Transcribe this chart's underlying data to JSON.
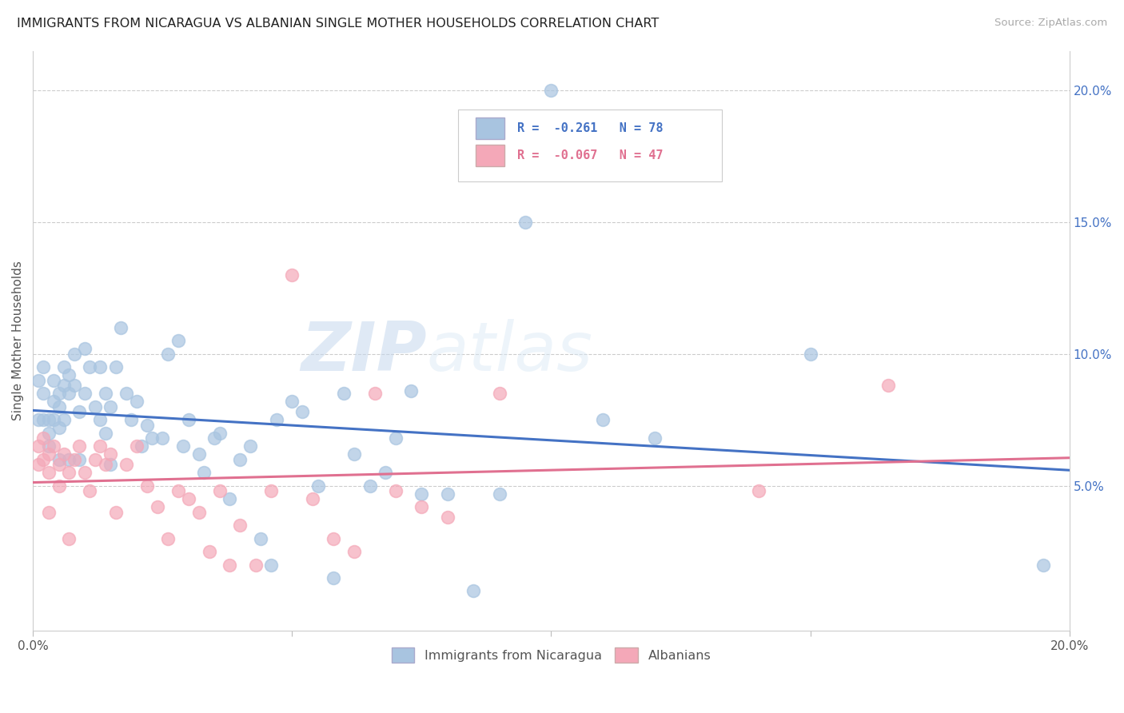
{
  "title": "IMMIGRANTS FROM NICARAGUA VS ALBANIAN SINGLE MOTHER HOUSEHOLDS CORRELATION CHART",
  "source": "Source: ZipAtlas.com",
  "ylabel": "Single Mother Households",
  "background_color": "#ffffff",
  "watermark_zip": "ZIP",
  "watermark_atlas": "atlas",
  "series1_label": "Immigrants from Nicaragua",
  "series2_label": "Albanians",
  "series1_color": "#a8c4e0",
  "series2_color": "#f4a8b8",
  "series1_line_color": "#4472c4",
  "series2_line_color": "#e07090",
  "legend_r1": "R =  -0.261",
  "legend_n1": "N = 78",
  "legend_r2": "R =  -0.067",
  "legend_n2": "N = 47",
  "right_axis_color": "#4472c4",
  "xlim": [
    0.0,
    0.2
  ],
  "ylim": [
    -0.005,
    0.215
  ],
  "right_yticks": [
    0.0,
    0.05,
    0.1,
    0.15,
    0.2
  ],
  "right_yticklabels": [
    "",
    "5.0%",
    "10.0%",
    "15.0%",
    "20.0%"
  ],
  "series1_x": [
    0.001,
    0.001,
    0.002,
    0.002,
    0.002,
    0.003,
    0.003,
    0.003,
    0.004,
    0.004,
    0.004,
    0.005,
    0.005,
    0.005,
    0.005,
    0.006,
    0.006,
    0.006,
    0.007,
    0.007,
    0.007,
    0.008,
    0.008,
    0.009,
    0.009,
    0.01,
    0.01,
    0.011,
    0.012,
    0.013,
    0.013,
    0.014,
    0.014,
    0.015,
    0.015,
    0.016,
    0.017,
    0.018,
    0.019,
    0.02,
    0.021,
    0.022,
    0.023,
    0.025,
    0.026,
    0.028,
    0.029,
    0.03,
    0.032,
    0.033,
    0.035,
    0.036,
    0.038,
    0.04,
    0.042,
    0.044,
    0.046,
    0.047,
    0.05,
    0.052,
    0.055,
    0.058,
    0.06,
    0.062,
    0.065,
    0.068,
    0.07,
    0.073,
    0.075,
    0.08,
    0.085,
    0.09,
    0.095,
    0.1,
    0.11,
    0.12,
    0.15,
    0.195
  ],
  "series1_y": [
    0.09,
    0.075,
    0.095,
    0.085,
    0.075,
    0.075,
    0.07,
    0.065,
    0.09,
    0.082,
    0.075,
    0.085,
    0.08,
    0.072,
    0.06,
    0.095,
    0.088,
    0.075,
    0.092,
    0.085,
    0.06,
    0.1,
    0.088,
    0.078,
    0.06,
    0.102,
    0.085,
    0.095,
    0.08,
    0.095,
    0.075,
    0.085,
    0.07,
    0.08,
    0.058,
    0.095,
    0.11,
    0.085,
    0.075,
    0.082,
    0.065,
    0.073,
    0.068,
    0.068,
    0.1,
    0.105,
    0.065,
    0.075,
    0.062,
    0.055,
    0.068,
    0.07,
    0.045,
    0.06,
    0.065,
    0.03,
    0.02,
    0.075,
    0.082,
    0.078,
    0.05,
    0.015,
    0.085,
    0.062,
    0.05,
    0.055,
    0.068,
    0.086,
    0.047,
    0.047,
    0.01,
    0.047,
    0.15,
    0.2,
    0.075,
    0.068,
    0.1,
    0.02
  ],
  "series2_x": [
    0.001,
    0.001,
    0.002,
    0.002,
    0.003,
    0.003,
    0.003,
    0.004,
    0.005,
    0.005,
    0.006,
    0.007,
    0.007,
    0.008,
    0.009,
    0.01,
    0.011,
    0.012,
    0.013,
    0.014,
    0.015,
    0.016,
    0.018,
    0.02,
    0.022,
    0.024,
    0.026,
    0.028,
    0.03,
    0.032,
    0.034,
    0.036,
    0.038,
    0.04,
    0.043,
    0.046,
    0.05,
    0.054,
    0.058,
    0.062,
    0.066,
    0.07,
    0.075,
    0.08,
    0.09,
    0.14,
    0.165
  ],
  "series2_y": [
    0.065,
    0.058,
    0.068,
    0.06,
    0.062,
    0.055,
    0.04,
    0.065,
    0.058,
    0.05,
    0.062,
    0.055,
    0.03,
    0.06,
    0.065,
    0.055,
    0.048,
    0.06,
    0.065,
    0.058,
    0.062,
    0.04,
    0.058,
    0.065,
    0.05,
    0.042,
    0.03,
    0.048,
    0.045,
    0.04,
    0.025,
    0.048,
    0.02,
    0.035,
    0.02,
    0.048,
    0.13,
    0.045,
    0.03,
    0.025,
    0.085,
    0.048,
    0.042,
    0.038,
    0.085,
    0.048,
    0.088
  ]
}
